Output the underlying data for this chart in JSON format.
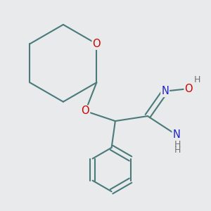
{
  "background_color": "#e8eaeb",
  "bond_color": "#4a7a7a",
  "bond_width": 1.5,
  "atom_colors": {
    "O": "#cc0000",
    "N": "#2222cc",
    "H": "#707070",
    "C": "#4a7a7a"
  },
  "font_size_atom": 10.5,
  "font_size_H": 9.0,
  "figsize": [
    3.0,
    3.0
  ],
  "dpi": 100,
  "xlim": [
    0.08,
    0.92
  ],
  "ylim": [
    0.08,
    0.92
  ]
}
